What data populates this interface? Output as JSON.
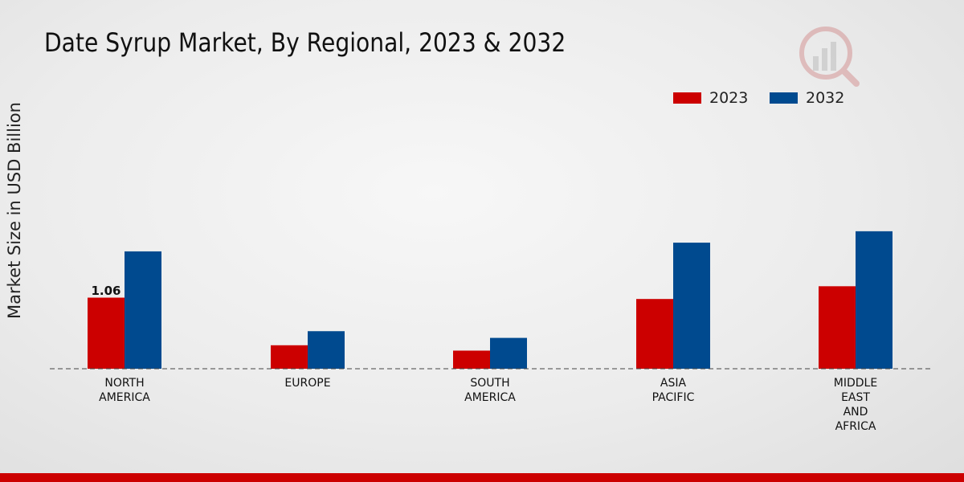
{
  "chart_data": {
    "type": "bar",
    "title": "Date Syrup Market, By Regional, 2023 & 2032",
    "xlabel": "",
    "ylabel": "Market Size in USD Billion",
    "categories": [
      "NORTH\nAMERICA",
      "EUROPE",
      "SOUTH\nAMERICA",
      "ASIA\nPACIFIC",
      "MIDDLE\nEAST\nAND\nAFRICA"
    ],
    "series": [
      {
        "name": "2023",
        "color": "#cc0000",
        "values": [
          1.06,
          0.35,
          0.27,
          1.04,
          1.23
        ]
      },
      {
        "name": "2032",
        "color": "#004a8f",
        "values": [
          1.75,
          0.56,
          0.46,
          1.88,
          2.05
        ]
      }
    ],
    "data_labels": [
      {
        "series": 0,
        "index": 0,
        "text": "1.06"
      }
    ],
    "ylim": [
      0,
      4.6
    ],
    "legend_position": "top-right",
    "grid": false
  }
}
